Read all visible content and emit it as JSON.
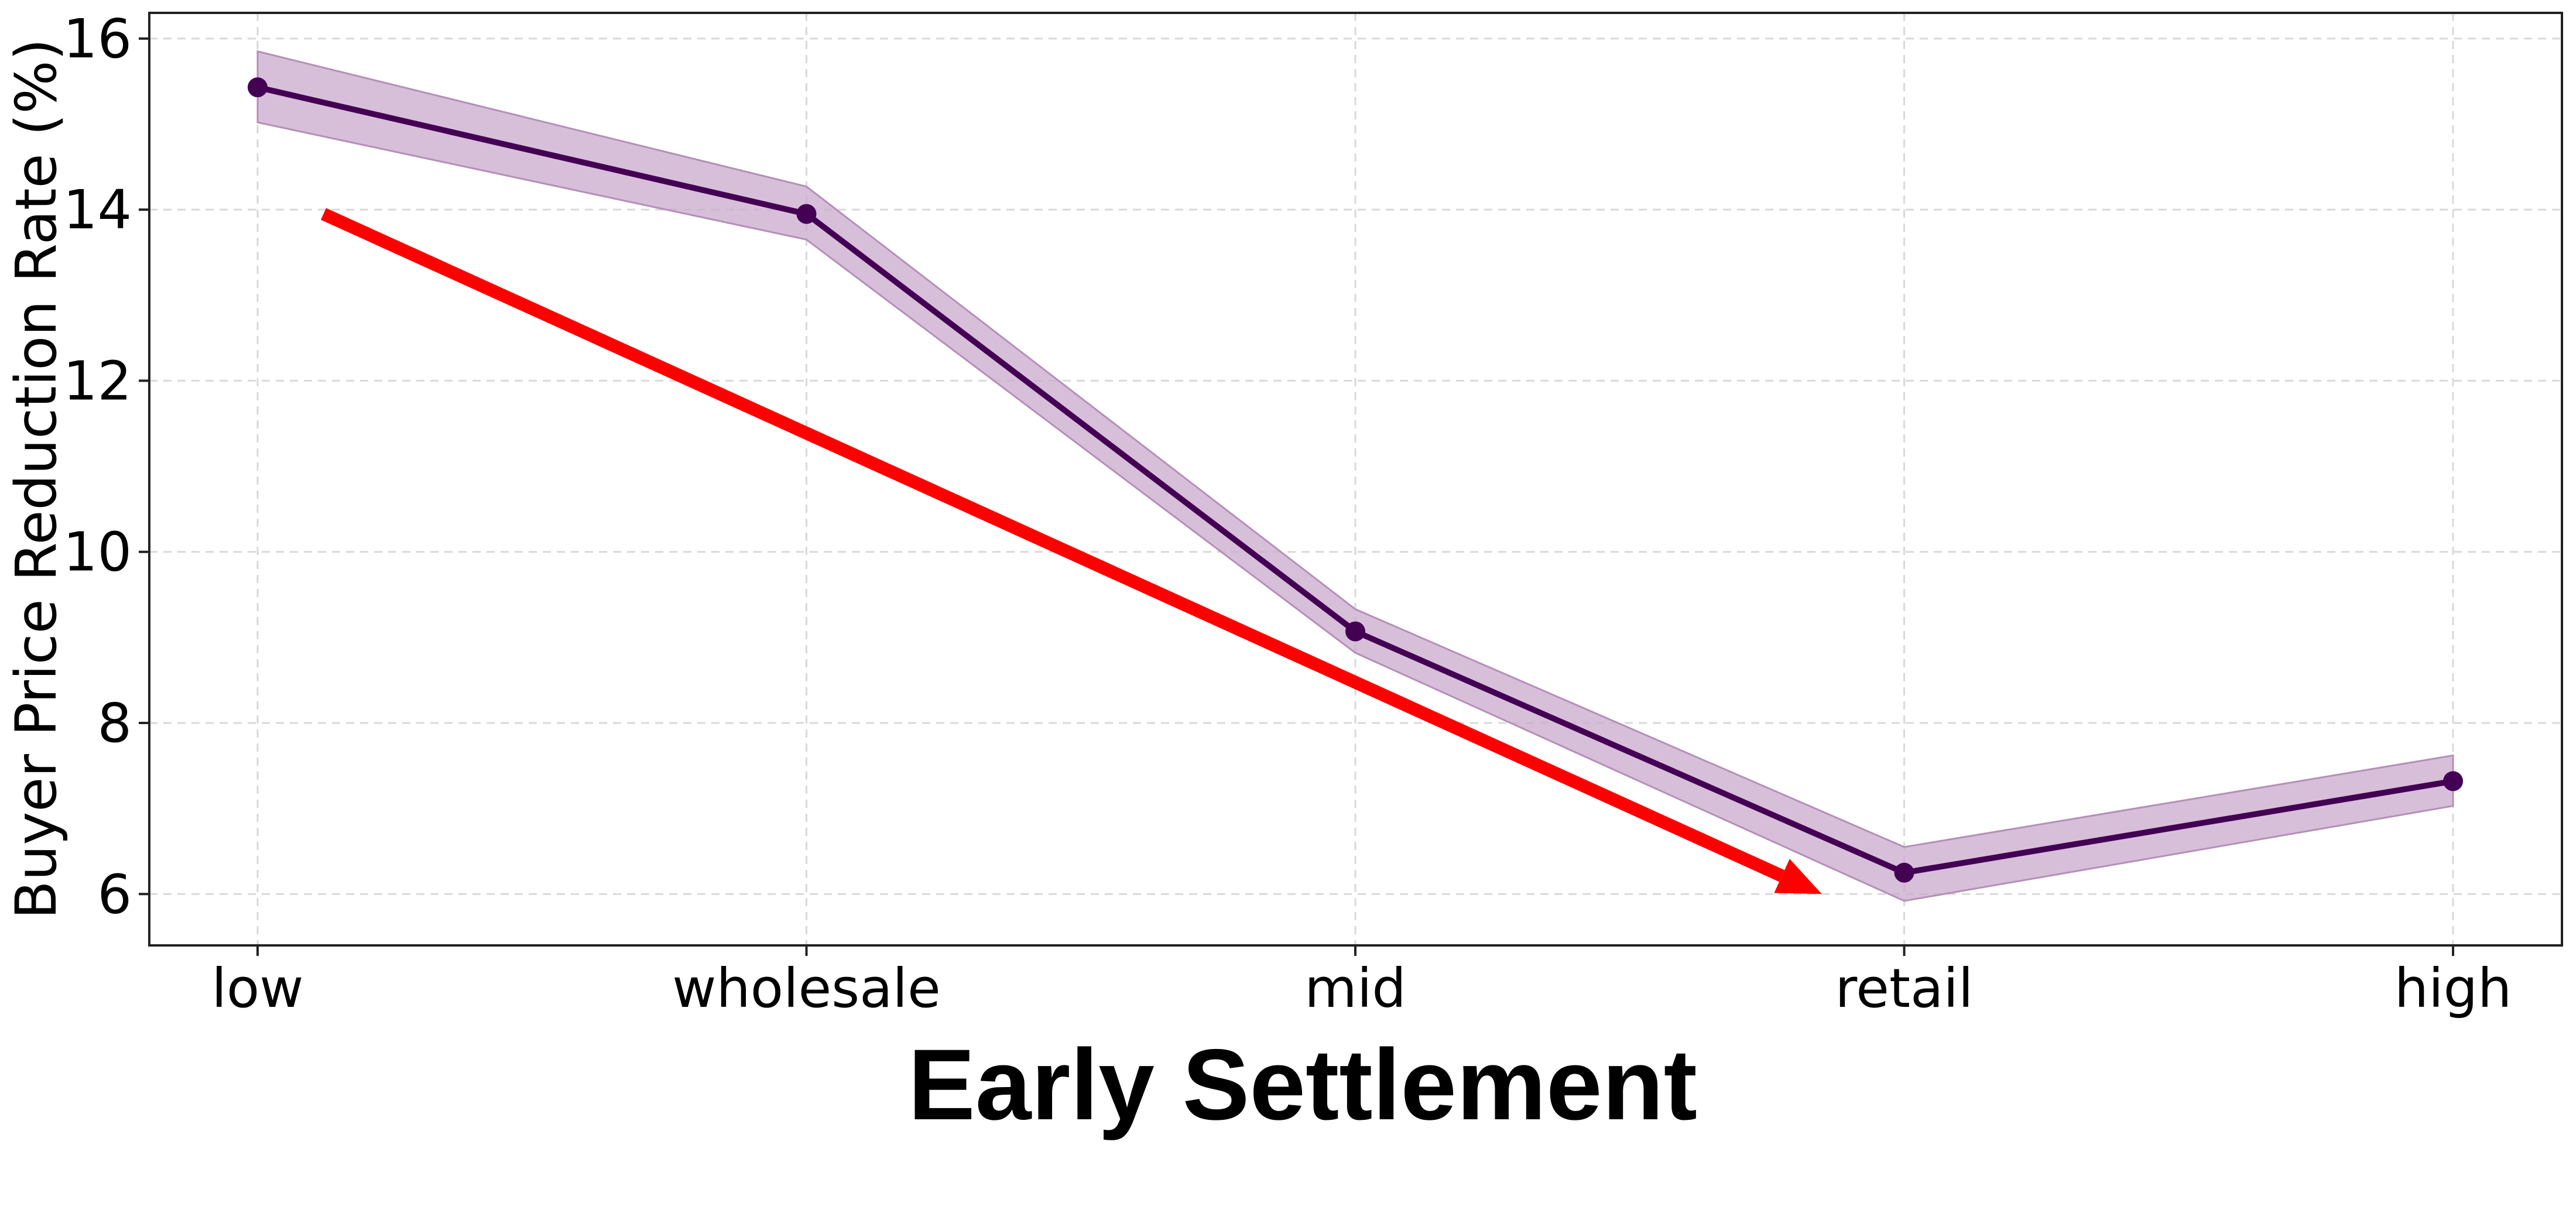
{
  "chart_data": {
    "type": "line",
    "title": "Early Settlement",
    "xlabel": "",
    "ylabel": "Buyer Price Reduction Rate (%)",
    "categories": [
      "low",
      "wholesale",
      "mid",
      "retail",
      "high"
    ],
    "ylim": [
      5.4,
      16.3
    ],
    "yticks": [
      6,
      8,
      10,
      12,
      14,
      16
    ],
    "grid": true,
    "series": [
      {
        "values": [
          15.43,
          13.95,
          9.07,
          6.25,
          7.32
        ],
        "lower": [
          15.02,
          13.65,
          8.82,
          5.92,
          7.03
        ],
        "upper": [
          15.85,
          14.27,
          9.33,
          6.55,
          7.62
        ],
        "color": "#440154",
        "band_color": "#c9a9cc"
      }
    ],
    "trend_arrow": {
      "color": "#ff0000",
      "from": {
        "x": 0.12,
        "y": 13.95
      },
      "to": {
        "x": 2.85,
        "y": 6.0
      }
    }
  }
}
